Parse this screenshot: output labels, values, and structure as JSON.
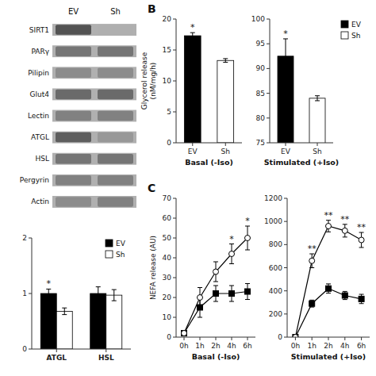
{
  "chart_data": [
    {
      "type": "heatmap",
      "categories": [
        "SIRT1",
        "PARγ",
        "Pilipin",
        "Glut4",
        "Lectin",
        "ATGL",
        "HSL",
        "Pergyrin",
        "Actin"
      ],
      "series": [
        {
          "name": "EV",
          "values": [
            0.75,
            0.6,
            0.5,
            0.65,
            0.55,
            0.7,
            0.6,
            0.55,
            0.5
          ]
        },
        {
          "name": "Sh",
          "values": [
            0.35,
            0.6,
            0.5,
            0.65,
            0.55,
            0.45,
            0.6,
            0.55,
            0.55
          ]
        }
      ],
      "color_range": [
        0,
        1
      ]
    },
    {
      "type": "bar",
      "categories": [
        "ATGL",
        "HSL"
      ],
      "series": [
        {
          "name": "EV",
          "color": "black",
          "values": [
            1.0,
            1.0
          ],
          "errors": [
            0.08,
            0.12
          ]
        },
        {
          "name": "Sh",
          "color": "white",
          "values": [
            0.68,
            0.97
          ],
          "errors": [
            0.06,
            0.1
          ]
        }
      ],
      "ylim": [
        0,
        2
      ],
      "yticks": [
        0,
        1,
        2
      ],
      "legend": "upper right",
      "annotations": [
        {
          "text": "*",
          "category": "ATGL",
          "series": 0
        }
      ]
    },
    {
      "type": "bar",
      "title": "B",
      "categories": [
        "EV",
        "Sh"
      ],
      "values": [
        17.3,
        13.3
      ],
      "errors": [
        0.5,
        0.3
      ],
      "colors": [
        "black",
        "white"
      ],
      "xlabel": "Basal (-Iso)",
      "ylabel": "Glycerol release\n(nM/mg/h)",
      "ylim": [
        0,
        20
      ],
      "yticks": [
        0,
        5,
        10,
        15,
        20
      ],
      "annotations": [
        {
          "text": "*",
          "category": "EV"
        }
      ]
    },
    {
      "type": "bar",
      "categories": [
        "EV",
        "Sh"
      ],
      "values": [
        92.5,
        84.0
      ],
      "errors": [
        3.5,
        0.5
      ],
      "colors": [
        "black",
        "white"
      ],
      "xlabel": "Stimulated (+Iso)",
      "ylim": [
        75,
        100
      ],
      "yticks": [
        75,
        80,
        85,
        90,
        95,
        100
      ],
      "legend": "right",
      "annotations": [
        {
          "text": "*",
          "category": "EV"
        }
      ]
    },
    {
      "type": "line",
      "title": "C",
      "categories": [
        "0h",
        "1h",
        "2h",
        "4h",
        "6h"
      ],
      "series": [
        {
          "color": "black",
          "marker": "square",
          "values": [
            2,
            15,
            22,
            22,
            23
          ],
          "errors": [
            1,
            5,
            4,
            4,
            4
          ]
        },
        {
          "color": "black",
          "marker": "open-circle",
          "values": [
            2,
            20,
            33,
            42,
            50
          ],
          "errors": [
            1,
            5,
            5,
            5,
            6
          ]
        }
      ],
      "xlabel": "Basal (-Iso)",
      "ylabel": "NEFA release (AU)",
      "ylim": [
        0,
        70
      ],
      "yticks": [
        0,
        10,
        20,
        30,
        40,
        50,
        60,
        70
      ],
      "annotations": [
        {
          "text": "*",
          "category": "4h",
          "series": 1
        },
        {
          "text": "*",
          "category": "6h",
          "series": 1
        }
      ]
    },
    {
      "type": "line",
      "categories": [
        "0h",
        "1h",
        "2h",
        "4h",
        "6h"
      ],
      "series": [
        {
          "color": "black",
          "marker": "square",
          "values": [
            0,
            290,
            420,
            360,
            330
          ],
          "errors": [
            0,
            30,
            40,
            35,
            40
          ]
        },
        {
          "color": "black",
          "marker": "open-circle",
          "values": [
            0,
            660,
            960,
            920,
            840
          ],
          "errors": [
            0,
            60,
            50,
            55,
            65
          ]
        }
      ],
      "xlabel": "Stimulated (+Iso)",
      "ylim": [
        0,
        1200
      ],
      "yticks": [
        0,
        200,
        400,
        600,
        800,
        1000,
        1200
      ],
      "annotations": [
        {
          "text": "**",
          "category": "1h",
          "series": 1
        },
        {
          "text": "**",
          "category": "2h",
          "series": 1
        },
        {
          "text": "**",
          "category": "4h",
          "series": 1
        },
        {
          "text": "**",
          "category": "6h",
          "series": 1
        }
      ]
    }
  ]
}
